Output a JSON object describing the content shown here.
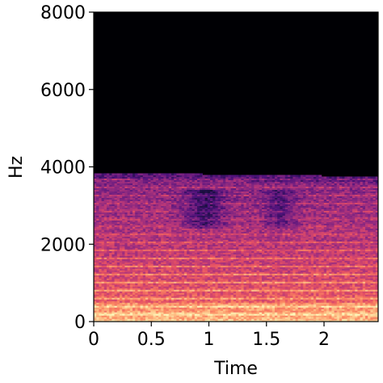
{
  "chart_data": {
    "type": "heatmap",
    "title": "",
    "xlabel": "Time",
    "ylabel": "Hz",
    "xlim": [
      0,
      2.47
    ],
    "ylim": [
      0,
      8000
    ],
    "x_ticks": [
      {
        "value": 0,
        "label": "0"
      },
      {
        "value": 0.5,
        "label": "0.5"
      },
      {
        "value": 1,
        "label": "1"
      },
      {
        "value": 1.5,
        "label": "1.5"
      },
      {
        "value": 2,
        "label": "2"
      }
    ],
    "y_ticks": [
      {
        "value": 0,
        "label": "0"
      },
      {
        "value": 2000,
        "label": "2000"
      },
      {
        "value": 4000,
        "label": "4000"
      },
      {
        "value": 6000,
        "label": "6000"
      },
      {
        "value": 8000,
        "label": "8000"
      }
    ],
    "cutoff_hz_start": 3850,
    "cutoff_hz_end": 3750,
    "colormap": [
      "#000004",
      "#1c1044",
      "#4f127b",
      "#812581",
      "#b5367a",
      "#e55064",
      "#fb8761",
      "#fec287",
      "#fcfdbf"
    ],
    "grid": false
  }
}
